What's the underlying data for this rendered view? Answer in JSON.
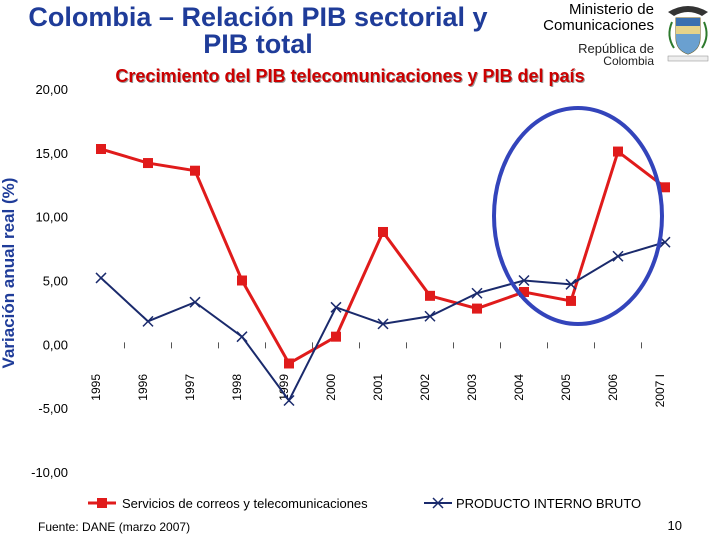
{
  "slide": {
    "title": "Colombia – Relación PIB sectorial y PIB total",
    "ministry_line1": "Ministerio de",
    "ministry_line2": "Comunicaciones",
    "republic_line1": "República de",
    "republic_line2": "Colombia",
    "source": "Fuente: DANE (marzo 2007)",
    "page_number": "10"
  },
  "colors": {
    "series_telecom": "#e01b1b",
    "series_pib": "#1a2a6c",
    "highlight_circle": "#3344bb",
    "title_blue": "#1f3c99"
  },
  "chart_data": {
    "type": "line",
    "title": "Crecimiento del PIB telecomunicaciones y PIB del país",
    "ylabel": "Variación anual real (%)",
    "xlabel": "",
    "ylim": [
      -10,
      20
    ],
    "yticks": [
      20,
      15,
      10,
      5,
      0,
      -5,
      -10
    ],
    "ytick_labels": [
      "20,00",
      "15,00",
      "10,00",
      "5,00",
      "0,00",
      "-5,00",
      "-10,00"
    ],
    "categories": [
      "1995",
      "1996",
      "1997",
      "1998",
      "1999",
      "2000",
      "2001",
      "2002",
      "2003",
      "2004",
      "2005",
      "2006",
      "2007"
    ],
    "category_labels": [
      "1995",
      "1996",
      "1997",
      "1998",
      "1999",
      "2000",
      "2001",
      "2002",
      "2003",
      "2004",
      "2005",
      "2006",
      "2007 I"
    ],
    "series": [
      {
        "name": "Servicios de correos y telecomunicaciones",
        "marker": "square",
        "values": [
          15.3,
          14.2,
          13.6,
          5.0,
          -1.5,
          0.6,
          8.8,
          3.8,
          2.8,
          4.1,
          3.4,
          15.1,
          12.3
        ]
      },
      {
        "name": "PRODUCTO INTERNO BRUTO",
        "marker": "x",
        "values": [
          5.2,
          1.8,
          3.3,
          0.6,
          -4.4,
          2.9,
          1.6,
          2.2,
          4.0,
          5.0,
          4.7,
          6.9,
          8.0
        ]
      }
    ],
    "legend_position": "bottom",
    "grid": false
  }
}
